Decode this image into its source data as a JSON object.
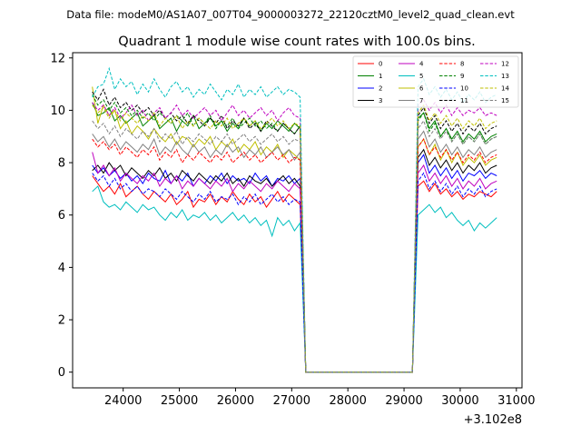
{
  "chart_data": {
    "type": "line",
    "suptitle": "Data file: modeM0/AS1A07_007T04_9000003272_22120cztM0_level2_quad_clean.evt",
    "title": "Quadrant 1 module wise count rates with 100.0s bins.",
    "xlabel": "",
    "ylabel": "",
    "x_offset_label": "+3.102e8",
    "xlim": [
      23100,
      31100
    ],
    "ylim": [
      -0.6,
      12.2
    ],
    "x_ticks": [
      24000,
      25000,
      26000,
      27000,
      28000,
      29000,
      30000,
      31000
    ],
    "x_tick_labels": [
      "24000",
      "25000",
      "26000",
      "27000",
      "28000",
      "29000",
      "30000",
      "31000"
    ],
    "y_ticks": [
      0,
      2,
      4,
      6,
      8,
      10,
      12
    ],
    "y_tick_labels": [
      "0",
      "2",
      "4",
      "6",
      "8",
      "10",
      "12"
    ],
    "grid": false,
    "legend_placement": "top-right",
    "legend_columns": 4,
    "gap": {
      "start": 27250,
      "end": 29150,
      "value": 0
    },
    "segment1": {
      "x_start": 23450,
      "x_end": 27150,
      "step": 100
    },
    "segment2": {
      "x_start": 29250,
      "x_end": 30650,
      "step": 100
    },
    "series": [
      {
        "name": "0",
        "color": "#ff0000",
        "dash": "solid",
        "seg1": [
          7.5,
          7.2,
          6.9,
          7.1,
          6.8,
          7.2,
          6.7,
          6.9,
          7.1,
          6.8,
          6.6,
          6.9,
          6.7,
          6.5,
          6.8,
          6.4,
          6.6,
          6.9,
          6.3,
          6.6,
          6.5,
          6.8,
          6.4,
          6.7,
          6.5,
          6.9,
          6.6,
          6.4,
          6.8,
          6.5,
          6.7,
          6.3,
          6.6,
          6.9,
          6.5,
          6.8,
          6.6,
          6.4
        ],
        "seg2": [
          7.1,
          7.3,
          6.9,
          7.2,
          6.8,
          7.0,
          6.7,
          6.9,
          6.6,
          6.8,
          6.7,
          6.9,
          6.8,
          6.7,
          6.9
        ]
      },
      {
        "name": "1",
        "color": "#008000",
        "dash": "solid",
        "seg1": [
          10.3,
          9.8,
          9.9,
          10.1,
          9.6,
          9.8,
          9.5,
          9.7,
          9.9,
          9.4,
          9.6,
          9.8,
          9.3,
          9.5,
          9.7,
          9.2,
          9.6,
          9.4,
          9.8,
          9.3,
          9.5,
          9.7,
          9.4,
          9.6,
          9.2,
          9.5,
          9.3,
          9.7,
          9.4,
          9.6,
          9.2,
          9.5,
          9.3,
          9.6,
          9.4,
          9.2,
          9.5,
          9.3
        ],
        "seg2": [
          9.7,
          9.9,
          9.3,
          9.6,
          9.0,
          9.3,
          8.9,
          9.2,
          8.8,
          9.1,
          8.9,
          9.2,
          8.8,
          9.0,
          9.1
        ]
      },
      {
        "name": "2",
        "color": "#0000ff",
        "dash": "solid",
        "seg1": [
          7.9,
          7.6,
          7.8,
          7.5,
          7.7,
          7.4,
          7.6,
          7.3,
          7.5,
          7.2,
          7.6,
          7.4,
          7.3,
          7.7,
          7.2,
          7.5,
          7.3,
          7.6,
          7.1,
          7.4,
          7.2,
          7.5,
          7.3,
          7.6,
          7.2,
          7.5,
          7.3,
          7.4,
          7.2,
          7.6,
          7.3,
          7.5,
          7.1,
          7.4,
          7.3,
          7.5,
          7.2,
          7.4
        ],
        "seg2": [
          8.0,
          8.3,
          7.6,
          7.9,
          7.5,
          7.8,
          7.4,
          7.7,
          7.3,
          7.6,
          7.5,
          7.7,
          7.4,
          7.6,
          7.5
        ]
      },
      {
        "name": "3",
        "color": "#000000",
        "dash": "solid",
        "seg1": [
          7.7,
          7.9,
          7.6,
          8.0,
          7.7,
          7.9,
          7.5,
          7.8,
          7.6,
          7.4,
          7.7,
          7.5,
          7.8,
          7.4,
          7.6,
          7.3,
          7.7,
          7.5,
          7.3,
          7.6,
          7.4,
          7.2,
          7.5,
          7.3,
          7.6,
          7.2,
          7.4,
          7.1,
          7.5,
          7.3,
          7.2,
          7.4,
          7.1,
          7.3,
          7.5,
          7.2,
          7.4,
          7.1
        ],
        "seg2": [
          8.2,
          8.5,
          7.9,
          8.2,
          7.8,
          8.1,
          7.7,
          8.0,
          7.6,
          7.9,
          7.7,
          8.0,
          7.6,
          7.8,
          7.9
        ]
      },
      {
        "name": "4",
        "color": "#bf00bf",
        "dash": "solid",
        "seg1": [
          8.4,
          7.6,
          7.9,
          7.5,
          7.8,
          7.3,
          7.6,
          7.4,
          7.2,
          7.5,
          7.3,
          7.6,
          7.1,
          7.4,
          7.2,
          7.5,
          7.0,
          7.3,
          7.1,
          7.4,
          7.2,
          7.0,
          7.3,
          7.1,
          7.4,
          6.9,
          7.2,
          7.0,
          7.3,
          7.1,
          6.9,
          7.2,
          7.0,
          7.3,
          7.1,
          6.9,
          7.2,
          7.0
        ],
        "seg2": [
          7.6,
          7.9,
          7.3,
          7.6,
          7.2,
          7.5,
          7.1,
          7.4,
          7.0,
          7.3,
          7.1,
          7.4,
          7.0,
          7.2,
          7.3
        ]
      },
      {
        "name": "5",
        "color": "#00bfbf",
        "dash": "solid",
        "seg1": [
          6.9,
          7.1,
          6.5,
          6.3,
          6.4,
          6.2,
          6.5,
          6.3,
          6.1,
          6.4,
          6.2,
          6.3,
          6.0,
          5.8,
          6.1,
          5.9,
          6.2,
          5.8,
          6.0,
          5.9,
          6.1,
          5.8,
          6.0,
          5.7,
          5.9,
          6.1,
          5.8,
          6.0,
          5.7,
          5.9,
          5.6,
          5.8,
          5.2,
          5.9,
          5.6,
          5.8,
          5.4,
          5.7
        ],
        "seg2": [
          6.0,
          6.2,
          6.4,
          6.1,
          6.3,
          5.9,
          6.1,
          5.8,
          5.6,
          5.8,
          5.4,
          5.7,
          5.5,
          5.7,
          5.9
        ]
      },
      {
        "name": "6",
        "color": "#bfbf00",
        "dash": "solid",
        "seg1": [
          10.9,
          9.5,
          10.2,
          9.8,
          10.0,
          9.3,
          9.6,
          9.1,
          9.4,
          9.2,
          8.9,
          9.3,
          9.0,
          8.8,
          9.1,
          8.7,
          9.0,
          8.9,
          8.6,
          8.9,
          8.7,
          9.0,
          8.5,
          8.8,
          8.6,
          8.9,
          8.4,
          8.7,
          8.5,
          8.8,
          8.3,
          8.6,
          8.4,
          8.7,
          8.2,
          8.5,
          8.3,
          8.1
        ],
        "seg2": [
          8.6,
          8.9,
          8.3,
          8.7,
          8.1,
          8.5,
          8.0,
          8.4,
          7.9,
          8.2,
          8.0,
          8.3,
          7.9,
          8.1,
          8.2
        ]
      },
      {
        "name": "7",
        "color": "#808080",
        "dash": "solid",
        "seg1": [
          9.1,
          8.8,
          9.0,
          8.6,
          8.9,
          8.5,
          8.8,
          8.6,
          8.4,
          8.7,
          8.5,
          8.9,
          8.3,
          8.6,
          8.4,
          8.8,
          8.5,
          8.3,
          8.7,
          8.4,
          8.6,
          8.2,
          8.5,
          8.3,
          8.7,
          8.4,
          8.6,
          8.2,
          8.5,
          8.3,
          8.6,
          8.2,
          8.4,
          8.6,
          8.3,
          8.5,
          8.1,
          8.4
        ],
        "seg2": [
          8.9,
          9.2,
          8.6,
          8.9,
          8.4,
          8.7,
          8.3,
          8.6,
          8.2,
          8.5,
          8.3,
          8.6,
          8.2,
          8.4,
          8.5
        ]
      },
      {
        "name": "8",
        "color": "#ff0000",
        "dash": "dashed",
        "seg1": [
          8.9,
          8.6,
          8.8,
          8.5,
          8.7,
          8.3,
          8.6,
          8.4,
          8.2,
          8.5,
          8.3,
          8.6,
          8.1,
          8.4,
          8.2,
          8.5,
          8.0,
          8.3,
          8.1,
          8.4,
          8.2,
          8.0,
          8.3,
          8.1,
          8.4,
          8.0,
          8.2,
          8.4,
          8.1,
          8.3,
          8.0,
          8.2,
          8.4,
          8.1,
          8.3,
          8.0,
          8.2,
          8.1
        ],
        "seg2": [
          8.6,
          8.9,
          8.3,
          8.6,
          8.2,
          8.5,
          8.1,
          8.4,
          8.0,
          8.3,
          8.1,
          8.4,
          8.0,
          8.2,
          8.3
        ]
      },
      {
        "name": "9",
        "color": "#008000",
        "dash": "dashed",
        "seg1": [
          10.6,
          10.2,
          10.4,
          10.0,
          10.3,
          9.9,
          10.1,
          9.8,
          10.0,
          9.7,
          9.9,
          9.6,
          9.9,
          9.7,
          9.5,
          9.8,
          9.6,
          9.9,
          9.4,
          9.7,
          9.5,
          9.8,
          9.3,
          9.6,
          9.4,
          9.7,
          9.3,
          9.5,
          9.7,
          9.4,
          9.6,
          9.3,
          9.5,
          9.2,
          9.5,
          9.3,
          9.1,
          9.4
        ],
        "seg2": [
          9.6,
          9.9,
          9.2,
          9.5,
          9.0,
          9.3,
          8.8,
          9.1,
          8.7,
          9.0,
          8.8,
          9.1,
          8.7,
          8.9,
          9.0
        ]
      },
      {
        "name": "10",
        "color": "#0000ff",
        "dash": "dashed",
        "seg1": [
          7.6,
          7.3,
          7.5,
          7.1,
          7.4,
          7.0,
          7.2,
          6.9,
          7.1,
          6.8,
          7.0,
          6.9,
          6.7,
          7.0,
          6.8,
          6.6,
          6.9,
          6.7,
          6.5,
          6.8,
          6.6,
          6.9,
          6.5,
          6.7,
          6.6,
          6.8,
          6.4,
          6.7,
          6.5,
          6.8,
          6.4,
          6.6,
          6.8,
          6.5,
          6.7,
          6.4,
          6.6,
          6.5
        ],
        "seg2": [
          7.3,
          7.6,
          7.0,
          7.3,
          6.9,
          7.2,
          6.8,
          7.1,
          6.7,
          7.0,
          6.8,
          7.1,
          6.7,
          6.9,
          7.0
        ]
      },
      {
        "name": "11",
        "color": "#000000",
        "dash": "dashed",
        "seg1": [
          10.7,
          10.4,
          10.8,
          10.2,
          10.5,
          10.1,
          10.3,
          10.0,
          10.2,
          9.9,
          10.1,
          9.8,
          10.0,
          9.7,
          9.9,
          9.6,
          9.8,
          9.5,
          9.8,
          9.6,
          9.4,
          9.7,
          9.5,
          9.8,
          9.3,
          9.6,
          9.4,
          9.7,
          9.3,
          9.5,
          9.2,
          9.6,
          9.4,
          9.2,
          9.5,
          9.3,
          9.1,
          9.4
        ],
        "seg2": [
          9.8,
          10.1,
          9.5,
          9.8,
          9.3,
          9.6,
          9.2,
          9.5,
          9.1,
          9.4,
          9.2,
          9.5,
          9.1,
          9.3,
          9.4
        ]
      },
      {
        "name": "12",
        "color": "#bf00bf",
        "dash": "dashed",
        "seg1": [
          10.3,
          10.0,
          10.2,
          9.8,
          10.1,
          9.7,
          9.9,
          10.2,
          9.8,
          10.0,
          9.6,
          9.9,
          10.1,
          9.7,
          9.9,
          10.2,
          9.8,
          10.0,
          9.7,
          9.9,
          10.1,
          9.8,
          10.0,
          9.6,
          9.9,
          10.2,
          9.8,
          10.0,
          9.7,
          9.9,
          10.1,
          9.8,
          10.0,
          9.6,
          9.9,
          10.1,
          9.8,
          9.7
        ],
        "seg2": [
          10.2,
          10.4,
          10.0,
          10.3,
          9.9,
          10.2,
          9.8,
          10.1,
          9.8,
          10.0,
          9.9,
          10.1,
          9.8,
          9.9,
          9.8
        ]
      },
      {
        "name": "13",
        "color": "#00bfbf",
        "dash": "dashed",
        "seg1": [
          10.5,
          10.9,
          11.0,
          11.6,
          10.8,
          11.2,
          10.9,
          11.1,
          10.6,
          11.0,
          10.7,
          11.2,
          10.8,
          10.5,
          10.9,
          11.1,
          10.7,
          10.9,
          10.5,
          10.8,
          10.6,
          11.0,
          10.7,
          10.4,
          10.8,
          10.6,
          11.0,
          10.5,
          10.8,
          10.6,
          10.9,
          10.5,
          10.7,
          10.9,
          10.6,
          10.8,
          10.7,
          10.5
        ],
        "seg2": [
          10.9,
          11.2,
          10.6,
          10.9,
          10.5,
          10.8,
          10.4,
          10.7,
          10.3,
          10.6,
          10.4,
          10.7,
          10.3,
          10.5,
          10.6
        ]
      },
      {
        "name": "14",
        "color": "#bfbf00",
        "dash": "dashed",
        "seg1": [
          10.2,
          9.9,
          10.1,
          9.7,
          10.0,
          9.6,
          9.9,
          9.7,
          9.5,
          9.8,
          9.6,
          9.9,
          9.4,
          9.7,
          9.5,
          9.8,
          9.3,
          9.6,
          9.4,
          9.7,
          9.5,
          9.3,
          9.6,
          9.4,
          9.7,
          9.3,
          9.5,
          9.7,
          9.4,
          9.6,
          9.3,
          9.5,
          9.7,
          9.4,
          9.6,
          9.3,
          9.5,
          9.4
        ],
        "seg2": [
          9.9,
          10.2,
          9.6,
          9.9,
          9.5,
          9.8,
          9.4,
          9.7,
          9.3,
          9.6,
          9.4,
          9.7,
          9.3,
          9.5,
          9.6
        ]
      },
      {
        "name": "15",
        "color": "#808080",
        "dash": "dashed",
        "seg1": [
          9.6,
          9.3,
          9.5,
          9.1,
          9.4,
          9.0,
          9.3,
          9.1,
          8.9,
          9.2,
          9.0,
          9.3,
          8.8,
          9.1,
          8.9,
          9.2,
          8.7,
          9.0,
          8.8,
          9.1,
          8.9,
          8.7,
          9.0,
          8.8,
          9.1,
          8.7,
          8.9,
          9.1,
          8.8,
          9.0,
          8.7,
          8.9,
          9.1,
          8.8,
          9.0,
          8.7,
          8.9,
          8.8
        ],
        "seg2": [
          9.3,
          9.6,
          9.0,
          9.3,
          8.9,
          9.2,
          8.8,
          9.1,
          8.7,
          9.0,
          8.8,
          9.1,
          8.7,
          8.9,
          9.0
        ]
      }
    ]
  }
}
